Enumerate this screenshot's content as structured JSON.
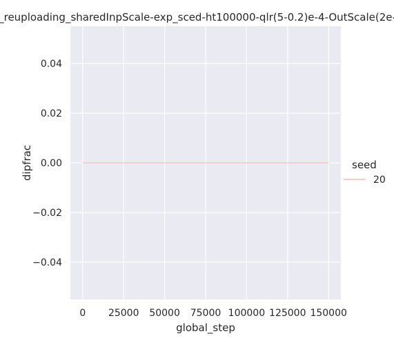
{
  "chart_data": {
    "type": "line",
    "title": "_reuploading_sharedInpScale-exp_sced-ht100000-qlr(5-0.2)e-4-OutScale(2e-",
    "xlabel": "global_step",
    "ylabel": "dipfrac",
    "xlim": [
      -7500,
      157500
    ],
    "ylim": [
      -0.055,
      0.055
    ],
    "xticks": [
      0,
      25000,
      50000,
      75000,
      100000,
      125000,
      150000
    ],
    "xtick_labels": [
      "0",
      "25000",
      "50000",
      "75000",
      "100000",
      "125000",
      "150000"
    ],
    "yticks": [
      0.04,
      0.02,
      0.0,
      -0.02,
      -0.04
    ],
    "ytick_labels": [
      "0.04",
      "0.02",
      "0.00",
      "−0.02",
      "−0.04"
    ],
    "grid": true,
    "background": "#eaeaf2",
    "legend": {
      "title": "seed",
      "placement": "right",
      "entries": [
        {
          "label": "20",
          "color": "#f4c6c0"
        }
      ]
    },
    "series": [
      {
        "name": "20",
        "color": "#f4c6c0",
        "x": [
          0,
          150000
        ],
        "y": [
          0.0,
          0.0
        ]
      }
    ]
  }
}
